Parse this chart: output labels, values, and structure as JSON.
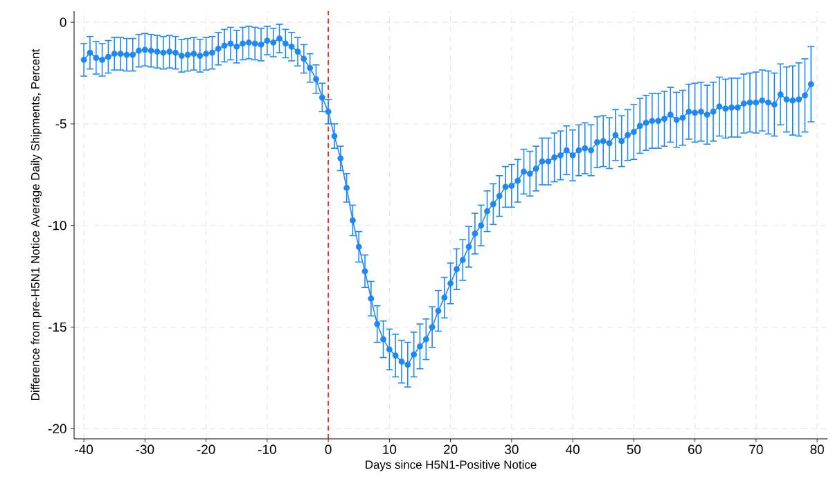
{
  "chart_data": {
    "type": "line",
    "xlabel": "Days since H5N1-Positive Notice",
    "ylabel": "Difference from pre-H5N1 Notice Average Daily Shipments, Percent",
    "x": [
      -40,
      -39,
      -38,
      -37,
      -36,
      -35,
      -34,
      -33,
      -32,
      -31,
      -30,
      -29,
      -28,
      -27,
      -26,
      -25,
      -24,
      -23,
      -22,
      -21,
      -20,
      -19,
      -18,
      -17,
      -16,
      -15,
      -14,
      -13,
      -12,
      -11,
      -10,
      -9,
      -8,
      -7,
      -6,
      -5,
      -4,
      -3,
      -2,
      -1,
      0,
      1,
      2,
      3,
      4,
      5,
      6,
      7,
      8,
      9,
      10,
      11,
      12,
      13,
      14,
      15,
      16,
      17,
      18,
      19,
      20,
      21,
      22,
      23,
      24,
      25,
      26,
      27,
      28,
      29,
      30,
      31,
      32,
      33,
      34,
      35,
      36,
      37,
      38,
      39,
      40,
      41,
      42,
      43,
      44,
      45,
      46,
      47,
      48,
      49,
      50,
      51,
      52,
      53,
      54,
      55,
      56,
      57,
      58,
      59,
      60,
      61,
      62,
      63,
      64,
      65,
      66,
      67,
      68,
      69,
      70,
      71,
      72,
      73,
      74,
      75,
      76,
      77,
      78,
      79
    ],
    "values": [
      -1.85,
      -1.5,
      -1.75,
      -1.85,
      -1.7,
      -1.55,
      -1.55,
      -1.6,
      -1.6,
      -1.4,
      -1.35,
      -1.4,
      -1.45,
      -1.5,
      -1.45,
      -1.5,
      -1.65,
      -1.6,
      -1.55,
      -1.65,
      -1.55,
      -1.5,
      -1.3,
      -1.15,
      -1.05,
      -1.2,
      -1.05,
      -1.0,
      -1.05,
      -1.1,
      -0.9,
      -1.0,
      -0.8,
      -1.05,
      -1.2,
      -1.45,
      -1.8,
      -2.25,
      -2.8,
      -3.7,
      -4.4,
      -5.6,
      -6.7,
      -8.15,
      -9.75,
      -11.05,
      -12.25,
      -13.6,
      -14.85,
      -15.6,
      -16.1,
      -16.4,
      -16.7,
      -16.85,
      -16.35,
      -15.95,
      -15.6,
      -15.0,
      -14.2,
      -13.55,
      -12.85,
      -12.15,
      -11.7,
      -11.05,
      -10.4,
      -10.0,
      -9.3,
      -8.95,
      -8.55,
      -8.1,
      -8.05,
      -7.8,
      -7.35,
      -7.45,
      -7.2,
      -6.85,
      -6.85,
      -6.65,
      -6.55,
      -6.3,
      -6.55,
      -6.3,
      -6.2,
      -6.3,
      -5.9,
      -5.85,
      -5.95,
      -5.55,
      -5.85,
      -5.55,
      -5.4,
      -5.1,
      -4.95,
      -4.85,
      -4.85,
      -4.75,
      -4.55,
      -4.8,
      -4.7,
      -4.4,
      -4.45,
      -4.4,
      -4.55,
      -4.4,
      -4.15,
      -4.25,
      -4.2,
      -4.2,
      -4.0,
      -3.95,
      -3.95,
      -3.85,
      -3.95,
      -4.05,
      -3.55,
      -3.8,
      -3.85,
      -3.8,
      -3.6,
      -3.05
    ],
    "errors": [
      0.8,
      0.8,
      0.8,
      0.8,
      0.8,
      0.8,
      0.8,
      0.8,
      0.8,
      0.8,
      0.8,
      0.8,
      0.8,
      0.8,
      0.8,
      0.8,
      0.8,
      0.8,
      0.8,
      0.8,
      0.8,
      0.8,
      0.8,
      0.8,
      0.8,
      0.8,
      0.8,
      0.8,
      0.8,
      0.8,
      0.7,
      0.7,
      0.7,
      0.7,
      0.7,
      0.7,
      0.7,
      0.7,
      0.7,
      0.7,
      0.6,
      0.6,
      0.6,
      0.7,
      0.75,
      0.75,
      0.8,
      0.85,
      0.9,
      0.9,
      1.0,
      1.05,
      1.05,
      1.1,
      1.1,
      1.1,
      1.0,
      1.0,
      1.0,
      1.0,
      1.0,
      1.0,
      1.0,
      1.0,
      1.0,
      1.0,
      1.0,
      1.0,
      1.0,
      1.0,
      1.05,
      1.05,
      1.1,
      1.1,
      1.1,
      1.15,
      1.15,
      1.2,
      1.2,
      1.2,
      1.25,
      1.25,
      1.25,
      1.25,
      1.25,
      1.25,
      1.25,
      1.25,
      1.25,
      1.25,
      1.35,
      1.35,
      1.35,
      1.35,
      1.35,
      1.35,
      1.35,
      1.35,
      1.35,
      1.35,
      1.45,
      1.45,
      1.45,
      1.45,
      1.45,
      1.45,
      1.45,
      1.45,
      1.45,
      1.45,
      1.5,
      1.5,
      1.55,
      1.55,
      1.5,
      1.6,
      1.7,
      1.8,
      1.8,
      1.85
    ],
    "color": "#1e88f5",
    "marker": "circle",
    "line_style": "solid",
    "xlim": [
      -41.6,
      81.7
    ],
    "ylim": [
      -20.5,
      0.55
    ],
    "xticks": [
      -40,
      -30,
      -20,
      -10,
      0,
      10,
      20,
      30,
      40,
      50,
      60,
      70,
      80
    ],
    "yticks": [
      -20,
      -15,
      -10,
      -5,
      0
    ],
    "grid": true,
    "ref_lines": [
      {
        "axis": "x",
        "value": 0,
        "color": "#ff0000",
        "line_style": "dashed"
      }
    ]
  }
}
